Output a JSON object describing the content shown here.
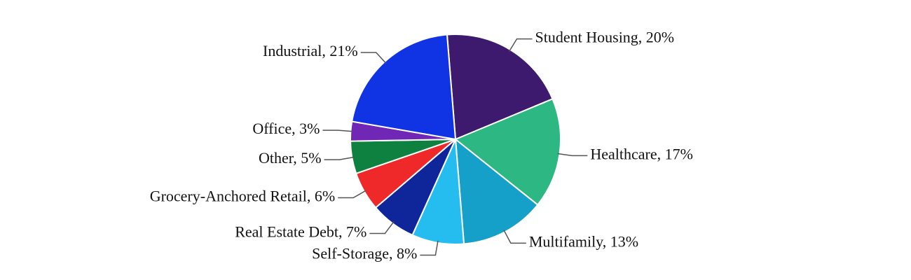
{
  "chart_data": {
    "type": "pie",
    "values": [
      20,
      17,
      13,
      8,
      7,
      6,
      5,
      3,
      21
    ],
    "value_labels": [
      "Student Housing, 20%",
      "Healthcare, 17%",
      "Multifamily, 13%",
      "Self-Storage, 8%",
      "Real Estate Debt, 7%",
      "Grocery-Anchored Retail, 6%",
      "Other, 5%",
      "Office, 3%",
      "Industrial, 21%"
    ],
    "colors": [
      "#3d1a6e",
      "#2db783",
      "#14a0c8",
      "#25bdf0",
      "#0e2699",
      "#ef2929",
      "#0e8040",
      "#7027b5",
      "#1034e3"
    ]
  }
}
